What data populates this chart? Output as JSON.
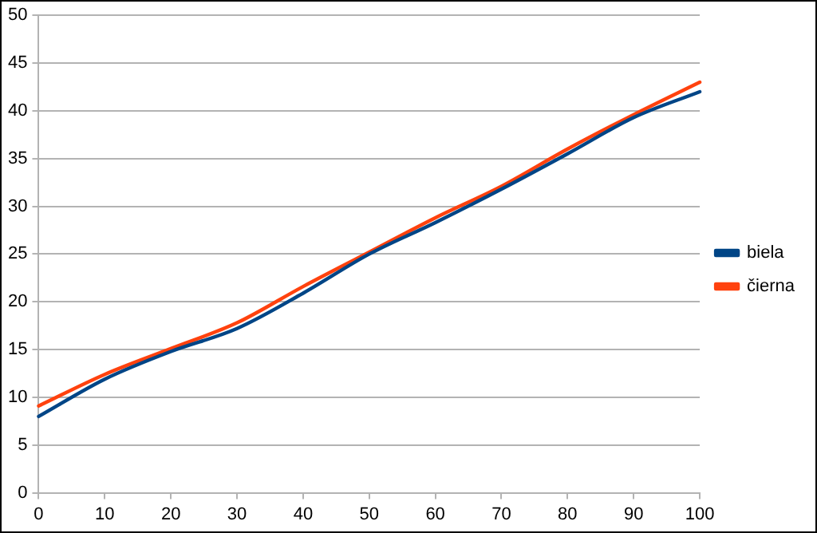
{
  "chart_data": {
    "type": "line",
    "x": [
      0,
      10,
      20,
      30,
      40,
      50,
      60,
      70,
      80,
      90,
      100
    ],
    "series": [
      {
        "name": "biela",
        "color": "#004586",
        "values": [
          8,
          11.9,
          14.8,
          17.2,
          20.9,
          25,
          28.3,
          31.8,
          35.5,
          39.3,
          42
        ]
      },
      {
        "name": "čierna",
        "color": "#ff420e",
        "values": [
          9.1,
          12.4,
          15.1,
          17.8,
          21.6,
          25.2,
          28.8,
          32.1,
          36,
          39.6,
          43
        ]
      }
    ],
    "xlim": [
      0,
      100
    ],
    "xticks": [
      0,
      10,
      20,
      30,
      40,
      50,
      60,
      70,
      80,
      90,
      100
    ],
    "ylim": [
      0,
      50
    ],
    "yticks": [
      0,
      5,
      10,
      15,
      20,
      25,
      30,
      35,
      40,
      45,
      50
    ],
    "grid": "y",
    "legend": "right",
    "marker": "none",
    "line_style": "solid"
  }
}
